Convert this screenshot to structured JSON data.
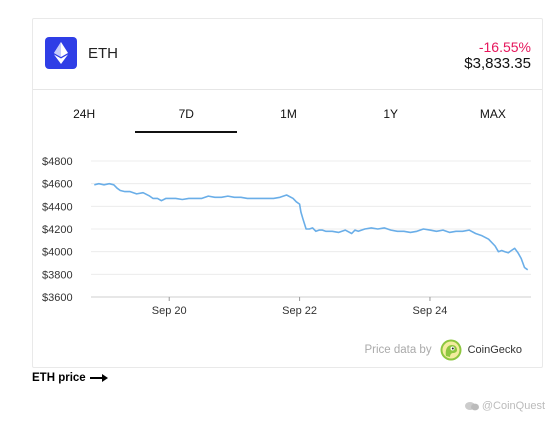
{
  "coin": {
    "name": "ETH",
    "change": "-16.55%",
    "price": "$3,833.35"
  },
  "tabs": [
    {
      "label": "24H",
      "active": false
    },
    {
      "label": "7D",
      "active": true
    },
    {
      "label": "1M",
      "active": false
    },
    {
      "label": "1Y",
      "active": false
    },
    {
      "label": "MAX",
      "active": false
    }
  ],
  "attribution": {
    "label": "Price data by",
    "brand": "CoinGecko"
  },
  "link": {
    "label": "ETH price"
  },
  "watermark": {
    "text": "@CoinQuest"
  },
  "colors": {
    "accent": "#2f3ee6",
    "negative": "#e6175c",
    "line": "#6aaee8"
  },
  "chart_data": {
    "type": "line",
    "ytick_labels": [
      "$4800",
      "$4600",
      "$4400",
      "$4200",
      "$4000",
      "$3800",
      "$3600"
    ],
    "ytick_values": [
      4800,
      4600,
      4400,
      4200,
      4000,
      3800,
      3600
    ],
    "ylim": [
      3600,
      4800
    ],
    "xtick_labels": [
      "Sep 20",
      "Sep 22",
      "Sep 24"
    ],
    "xtick_positions": [
      1,
      3,
      5
    ],
    "xlim": [
      -0.2,
      6.55
    ],
    "grid": true,
    "series": [
      {
        "x": [
          -0.15,
          -0.08,
          0,
          0.08,
          0.15,
          0.2,
          0.25,
          0.32,
          0.4,
          0.5,
          0.6,
          0.7,
          0.75,
          0.82,
          0.88,
          0.95,
          1.02,
          1.1,
          1.2,
          1.3,
          1.4,
          1.5,
          1.6,
          1.7,
          1.8,
          1.9,
          2.0,
          2.1,
          2.2,
          2.3,
          2.4,
          2.5,
          2.6,
          2.7,
          2.8,
          2.9,
          2.95,
          3.0,
          3.02,
          3.05,
          3.1,
          3.15,
          3.2,
          3.25,
          3.3,
          3.35,
          3.4,
          3.5,
          3.6,
          3.7,
          3.8,
          3.85,
          3.9,
          4.0,
          4.1,
          4.2,
          4.3,
          4.4,
          4.5,
          4.6,
          4.7,
          4.8,
          4.9,
          5.0,
          5.1,
          5.2,
          5.3,
          5.4,
          5.5,
          5.6,
          5.7,
          5.8,
          5.9,
          6.0,
          6.05,
          6.1,
          6.15,
          6.2,
          6.25,
          6.3,
          6.35,
          6.4,
          6.45,
          6.5
        ],
        "y": [
          4590,
          4600,
          4590,
          4600,
          4590,
          4560,
          4540,
          4530,
          4530,
          4510,
          4520,
          4490,
          4470,
          4470,
          4450,
          4470,
          4470,
          4470,
          4460,
          4470,
          4470,
          4470,
          4490,
          4480,
          4480,
          4490,
          4480,
          4480,
          4470,
          4470,
          4470,
          4470,
          4470,
          4480,
          4500,
          4470,
          4440,
          4420,
          4350,
          4290,
          4200,
          4200,
          4210,
          4180,
          4190,
          4190,
          4180,
          4180,
          4170,
          4190,
          4160,
          4190,
          4180,
          4200,
          4210,
          4200,
          4210,
          4190,
          4180,
          4180,
          4170,
          4180,
          4200,
          4190,
          4180,
          4190,
          4170,
          4180,
          4180,
          4190,
          4160,
          4140,
          4110,
          4050,
          4000,
          4010,
          4000,
          3990,
          4010,
          4030,
          3990,
          3940,
          3860,
          3840
        ]
      }
    ]
  }
}
